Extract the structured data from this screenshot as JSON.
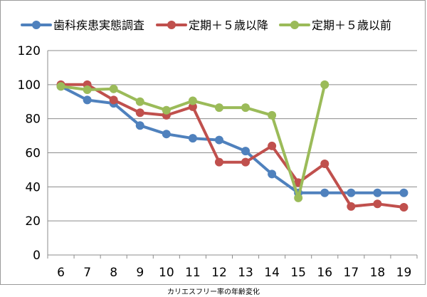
{
  "chart_data": {
    "type": "line",
    "title": "",
    "xlabel": "",
    "ylabel": "",
    "x": [
      6,
      7,
      8,
      9,
      10,
      11,
      12,
      13,
      14,
      15,
      16,
      17,
      18,
      19
    ],
    "ylim": [
      0,
      120
    ],
    "yticks": [
      0,
      20,
      40,
      60,
      80,
      100,
      120
    ],
    "grid": true,
    "legend_position": "top",
    "series": [
      {
        "name": "歯科疾患実態調査",
        "color": "#4f81bd",
        "values": [
          99,
          91,
          89,
          76,
          71,
          68.5,
          67.5,
          61,
          47.5,
          36.5,
          36.5,
          36.5,
          36.5,
          36.5
        ]
      },
      {
        "name": "定期＋５歳以降",
        "color": "#c0504d",
        "values": [
          100,
          100,
          91,
          83.5,
          82,
          87,
          54.5,
          54.5,
          64,
          42.5,
          53.5,
          28.5,
          30,
          28
        ]
      },
      {
        "name": "定期＋５歳以前",
        "color": "#9bbb59",
        "values": [
          99,
          97,
          97.5,
          90,
          85,
          90.5,
          86.5,
          86.5,
          82,
          33.5,
          100,
          null,
          null,
          null
        ]
      }
    ]
  },
  "caption": "カリエスフリー率の年齢変化"
}
